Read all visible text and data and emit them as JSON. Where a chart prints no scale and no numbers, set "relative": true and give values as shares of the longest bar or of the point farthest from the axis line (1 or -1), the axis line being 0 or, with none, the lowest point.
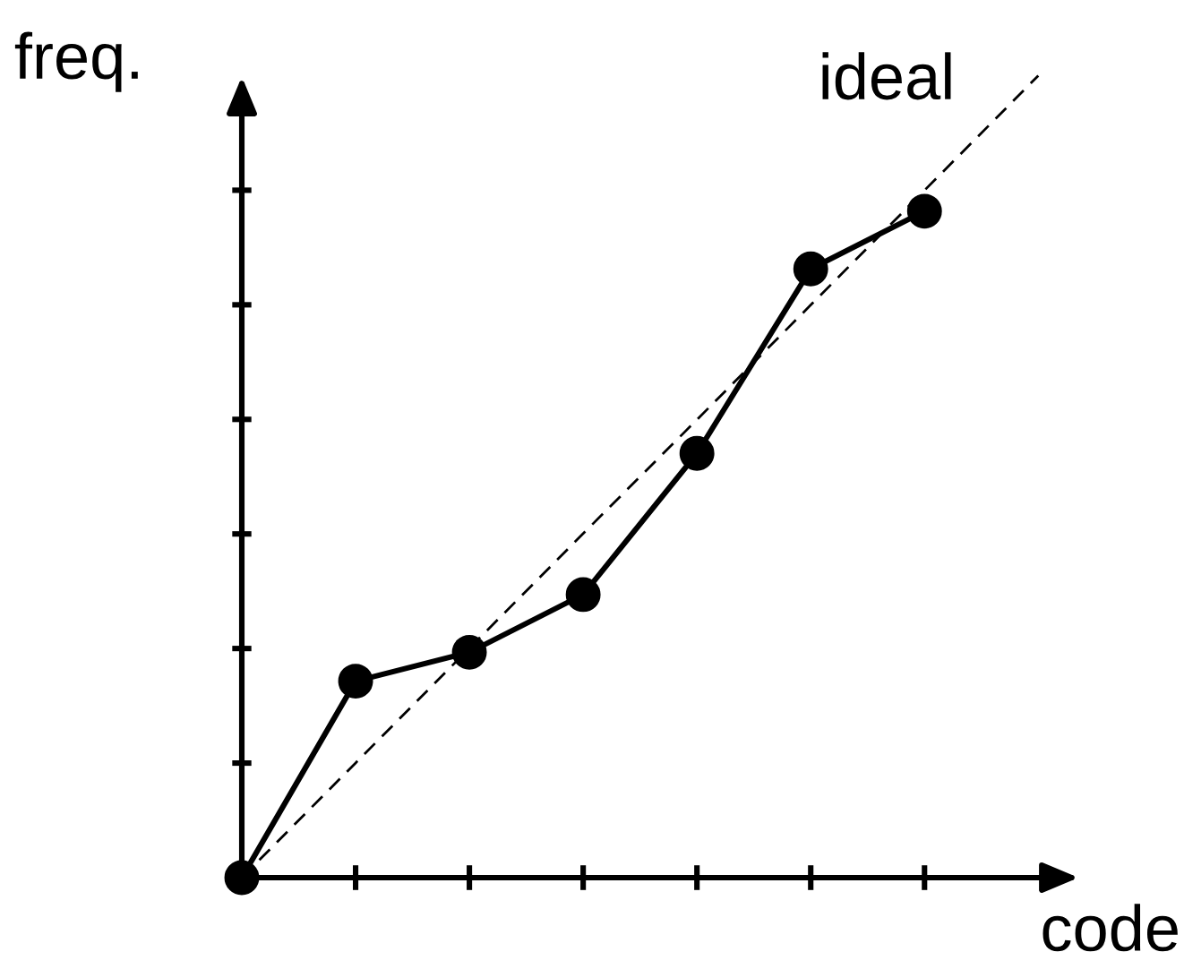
{
  "chart_data": {
    "type": "line",
    "relative": true,
    "xlabel": "code",
    "ylabel": "freq.",
    "categories": [
      null,
      null,
      null,
      null,
      null,
      null,
      null,
      null
    ],
    "series": [
      {
        "color": "#000000",
        "marker": "circle",
        "line_style": "solid",
        "values": [
          0,
          0.245,
          0.281,
          0.353,
          0.529,
          0.759,
          0.831,
          null
        ]
      },
      {
        "color": "#000000",
        "marker": "none",
        "line_style": "dashed",
        "values": [
          0,
          0.143,
          0.286,
          0.429,
          0.571,
          0.714,
          0.857,
          1
        ]
      }
    ],
    "annotations": [
      "ideal"
    ],
    "legend": false
  }
}
